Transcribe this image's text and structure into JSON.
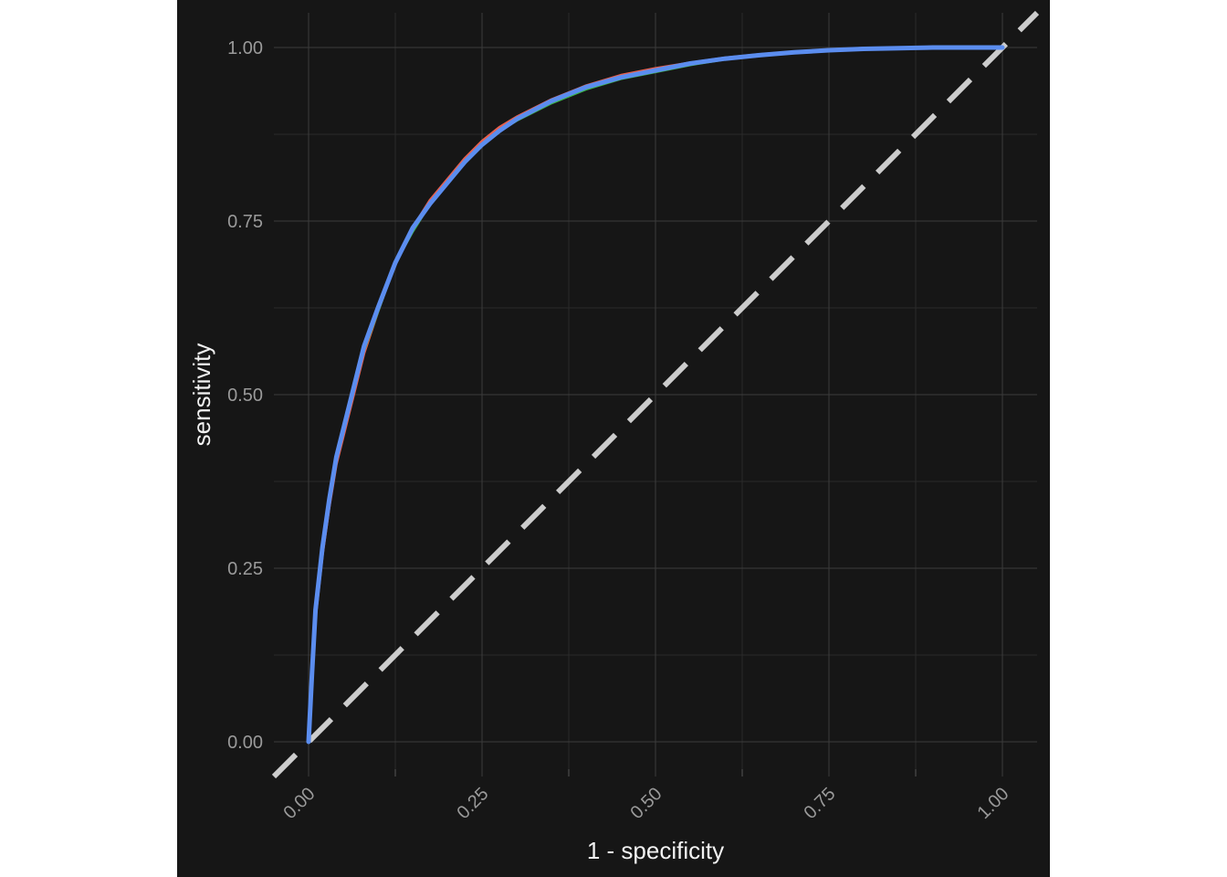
{
  "chart_data": {
    "type": "line",
    "title": "",
    "xlabel": "1 - specificity",
    "ylabel": "sensitivity",
    "xlim": [
      -0.05,
      1.05
    ],
    "ylim": [
      -0.05,
      1.05
    ],
    "grid": true,
    "legend": "none",
    "x_ticks": [
      0,
      0.25,
      0.5,
      0.75,
      1
    ],
    "x_tick_labels": [
      "0.00",
      "0.25",
      "0.50",
      "0.75",
      "1.00"
    ],
    "y_ticks": [
      0,
      0.25,
      0.5,
      0.75,
      1
    ],
    "y_tick_labels": [
      "0.00",
      "0.25",
      "0.50",
      "0.75",
      "1.00"
    ],
    "reference_line": {
      "x": [
        -0.05,
        1.05
      ],
      "y": [
        -0.05,
        1.05
      ],
      "style": "dashed",
      "color": "#cccccc"
    },
    "series": [
      {
        "color": "#e8604c",
        "x": [
          0,
          0.005,
          0.01,
          0.02,
          0.03,
          0.04,
          0.05,
          0.065,
          0.08,
          0.1,
          0.125,
          0.15,
          0.175,
          0.2,
          0.225,
          0.25,
          0.275,
          0.3,
          0.35,
          0.4,
          0.45,
          0.5,
          0.55,
          0.6,
          0.65,
          0.7,
          0.75,
          0.8,
          0.9,
          1
        ],
        "y": [
          0,
          0.1,
          0.18,
          0.27,
          0.34,
          0.4,
          0.44,
          0.5,
          0.56,
          0.62,
          0.69,
          0.74,
          0.78,
          0.81,
          0.84,
          0.865,
          0.885,
          0.9,
          0.925,
          0.945,
          0.96,
          0.97,
          0.978,
          0.985,
          0.99,
          0.994,
          0.997,
          0.999,
          1,
          1
        ]
      },
      {
        "color": "#3cb44b",
        "x": [
          0,
          0.005,
          0.01,
          0.02,
          0.03,
          0.04,
          0.05,
          0.065,
          0.08,
          0.1,
          0.125,
          0.15,
          0.175,
          0.2,
          0.225,
          0.25,
          0.275,
          0.3,
          0.35,
          0.4,
          0.45,
          0.5,
          0.55,
          0.6,
          0.65,
          0.7,
          0.75,
          0.8,
          0.9,
          1
        ],
        "y": [
          0,
          0.1,
          0.19,
          0.28,
          0.35,
          0.41,
          0.45,
          0.51,
          0.565,
          0.62,
          0.69,
          0.735,
          0.775,
          0.805,
          0.835,
          0.86,
          0.88,
          0.895,
          0.92,
          0.94,
          0.955,
          0.965,
          0.975,
          0.983,
          0.988,
          0.993,
          0.996,
          0.998,
          1,
          1
        ]
      },
      {
        "color": "#5b8def",
        "x": [
          0,
          0.005,
          0.01,
          0.02,
          0.03,
          0.04,
          0.05,
          0.065,
          0.08,
          0.1,
          0.125,
          0.15,
          0.175,
          0.2,
          0.225,
          0.25,
          0.275,
          0.3,
          0.35,
          0.4,
          0.45,
          0.5,
          0.55,
          0.6,
          0.65,
          0.7,
          0.75,
          0.8,
          0.9,
          1
        ],
        "y": [
          0,
          0.1,
          0.19,
          0.28,
          0.35,
          0.41,
          0.45,
          0.51,
          0.57,
          0.625,
          0.69,
          0.74,
          0.775,
          0.805,
          0.835,
          0.86,
          0.88,
          0.897,
          0.923,
          0.943,
          0.957,
          0.967,
          0.977,
          0.984,
          0.989,
          0.993,
          0.996,
          0.998,
          1,
          1
        ]
      }
    ]
  },
  "colors": {
    "page_background": "#ffffff",
    "plot_background": "#161616",
    "grid_major": "#3c3c3c",
    "grid_minor": "#2a2a2a",
    "tick_text": "#9a9a9a",
    "axis_title_text": "#f2f2f2"
  }
}
